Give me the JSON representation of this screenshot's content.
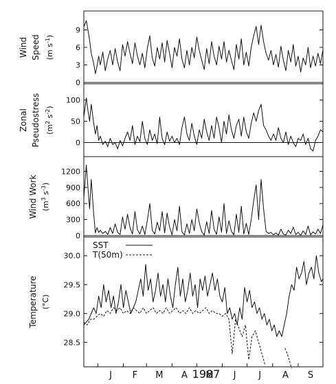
{
  "figure": {
    "year_label": "1987",
    "months": [
      "J",
      "F",
      "M",
      "A",
      "M",
      "J",
      "J",
      "A",
      "S"
    ],
    "colors": {
      "ink": "#111111",
      "background": "#ffffff"
    }
  },
  "chart_data": [
    {
      "type": "line",
      "ylabel_line1": "Wind",
      "ylabel_line2": "Speed",
      "unit_prefix": "(m s",
      "unit_exp": "-1",
      "unit_suffix": ")",
      "ylim": [
        0,
        12
      ],
      "ticks": [
        0,
        3,
        6,
        9
      ],
      "xlim": [
        0,
        290
      ],
      "zero_line": true,
      "series": [
        {
          "style": "solid",
          "x": [
            0,
            3,
            5,
            7,
            9,
            12,
            14,
            16,
            18,
            20,
            23,
            26,
            29,
            32,
            35,
            38,
            41,
            44,
            47,
            50,
            53,
            56,
            59,
            62,
            65,
            68,
            71,
            74,
            77,
            80,
            83,
            86,
            89,
            92,
            95,
            98,
            101,
            104,
            107,
            110,
            113,
            116,
            119,
            122,
            125,
            128,
            131,
            134,
            137,
            140,
            143,
            146,
            149,
            152,
            155,
            158,
            161,
            164,
            167,
            170,
            173,
            176,
            179,
            182,
            185,
            188,
            191,
            194,
            197,
            200,
            203,
            206,
            209,
            212,
            215,
            218,
            221,
            224,
            227,
            230,
            233,
            236,
            239,
            242,
            245,
            248,
            251,
            254,
            257,
            260,
            263,
            266,
            269,
            272,
            275,
            278,
            281,
            284,
            287,
            290
          ],
          "y": [
            9.5,
            10.6,
            9.0,
            7.2,
            5.0,
            3.2,
            1.5,
            2.8,
            4.5,
            3.0,
            5.2,
            2.0,
            4.0,
            5.5,
            3.0,
            5.8,
            3.5,
            2.0,
            6.5,
            4.5,
            7.0,
            5.0,
            3.2,
            6.8,
            4.5,
            3.0,
            5.0,
            2.5,
            5.8,
            8.0,
            4.2,
            2.8,
            6.0,
            4.0,
            6.8,
            3.5,
            7.2,
            5.0,
            2.5,
            6.0,
            4.5,
            7.5,
            4.0,
            2.5,
            5.5,
            3.0,
            6.0,
            4.2,
            7.8,
            5.5,
            3.8,
            2.2,
            5.8,
            3.2,
            7.0,
            4.5,
            3.0,
            6.2,
            4.0,
            7.0,
            3.5,
            5.5,
            3.8,
            2.2,
            6.5,
            4.0,
            7.5,
            3.0,
            5.2,
            2.8,
            6.0,
            8.0,
            9.6,
            6.5,
            9.8,
            7.0,
            5.0,
            3.8,
            5.5,
            3.0,
            4.8,
            2.6,
            6.2,
            3.8,
            2.0,
            5.5,
            3.5,
            6.5,
            2.8,
            4.5,
            1.8,
            4.2,
            3.0,
            6.0,
            2.5,
            4.5,
            2.8,
            5.0,
            3.2,
            5.6
          ]
        }
      ]
    },
    {
      "type": "line",
      "ylabel_line1": "Zonal",
      "ylabel_line2": "Pseudostress",
      "unit_prefix": "(m",
      "unit_exp": "2",
      "unit_mid": " s",
      "unit_exp2": "-2",
      "unit_suffix": ")",
      "ylim": [
        -30,
        135
      ],
      "ticks": [
        0,
        50,
        100
      ],
      "xlim": [
        0,
        290
      ],
      "zero_line": true,
      "series": [
        {
          "style": "solid",
          "x": [
            0,
            3,
            5,
            7,
            9,
            12,
            14,
            16,
            18,
            20,
            23,
            26,
            29,
            32,
            35,
            38,
            41,
            44,
            47,
            50,
            53,
            56,
            59,
            62,
            65,
            68,
            71,
            74,
            77,
            80,
            83,
            86,
            89,
            92,
            95,
            98,
            101,
            104,
            107,
            110,
            113,
            116,
            119,
            122,
            125,
            128,
            131,
            134,
            137,
            140,
            143,
            146,
            149,
            152,
            155,
            158,
            161,
            164,
            167,
            170,
            173,
            176,
            179,
            182,
            185,
            188,
            191,
            194,
            197,
            200,
            203,
            206,
            209,
            212,
            215,
            218,
            221,
            224,
            227,
            230,
            233,
            236,
            239,
            242,
            245,
            248,
            251,
            254,
            257,
            260,
            263,
            266,
            269,
            272,
            275,
            278,
            281,
            284,
            287,
            290
          ],
          "y": [
            60,
            105,
            75,
            50,
            90,
            45,
            20,
            40,
            5,
            15,
            -5,
            3,
            -10,
            10,
            -5,
            0,
            -15,
            5,
            -8,
            10,
            25,
            5,
            40,
            -5,
            15,
            2,
            50,
            10,
            -5,
            30,
            5,
            20,
            -3,
            60,
            10,
            -5,
            25,
            3,
            15,
            0,
            10,
            -5,
            35,
            60,
            20,
            5,
            45,
            15,
            -5,
            30,
            10,
            55,
            25,
            5,
            40,
            10,
            60,
            35,
            0,
            50,
            20,
            65,
            30,
            10,
            40,
            55,
            15,
            60,
            25,
            10,
            45,
            70,
            50,
            75,
            90,
            40,
            30,
            15,
            5,
            20,
            5,
            35,
            10,
            0,
            25,
            -5,
            15,
            0,
            -10,
            10,
            5,
            20,
            -5,
            10,
            -15,
            -20,
            5,
            15,
            30,
            25
          ]
        }
      ]
    },
    {
      "type": "line",
      "ylabel_line1": "Wind Work",
      "unit_prefix": "(m",
      "unit_exp": "3",
      "unit_mid": " s",
      "unit_exp2": "-3",
      "unit_suffix": ")",
      "ylim": [
        0,
        1450
      ],
      "ticks": [
        0,
        300,
        600,
        900,
        1200
      ],
      "xlim": [
        0,
        290
      ],
      "zero_line": true,
      "series": [
        {
          "style": "solid",
          "x": [
            0,
            3,
            5,
            7,
            9,
            12,
            14,
            16,
            18,
            20,
            23,
            26,
            29,
            32,
            35,
            38,
            41,
            44,
            47,
            50,
            53,
            56,
            59,
            62,
            65,
            68,
            71,
            74,
            77,
            80,
            83,
            86,
            89,
            92,
            95,
            98,
            101,
            104,
            107,
            110,
            113,
            116,
            119,
            122,
            125,
            128,
            131,
            134,
            137,
            140,
            143,
            146,
            149,
            152,
            155,
            158,
            161,
            164,
            167,
            170,
            173,
            176,
            179,
            182,
            185,
            188,
            191,
            194,
            197,
            200,
            203,
            206,
            209,
            212,
            215,
            218,
            221,
            224,
            227,
            230,
            233,
            236,
            239,
            242,
            245,
            248,
            251,
            254,
            257,
            260,
            263,
            266,
            269,
            272,
            275,
            278,
            281,
            284,
            287,
            290
          ],
          "y": [
            700,
            1320,
            900,
            500,
            1050,
            400,
            50,
            150,
            60,
            100,
            40,
            80,
            20,
            150,
            40,
            220,
            60,
            20,
            350,
            120,
            400,
            150,
            30,
            450,
            110,
            30,
            180,
            20,
            280,
            600,
            100,
            30,
            250,
            90,
            450,
            50,
            420,
            160,
            15,
            300,
            90,
            550,
            70,
            15,
            220,
            40,
            300,
            90,
            500,
            240,
            70,
            10,
            260,
            40,
            470,
            120,
            25,
            350,
            60,
            600,
            40,
            280,
            80,
            15,
            400,
            60,
            550,
            30,
            230,
            20,
            300,
            650,
            950,
            300,
            1050,
            500,
            80,
            40,
            60,
            15,
            50,
            10,
            120,
            30,
            10,
            100,
            40,
            160,
            20,
            60,
            5,
            90,
            20,
            180,
            15,
            70,
            30,
            120,
            40,
            200
          ]
        }
      ]
    },
    {
      "type": "line",
      "ylabel_line1": "Temperature",
      "unit_prefix": "(°C)",
      "ylim": [
        28.1,
        30.3
      ],
      "ticks": [
        28.5,
        29.0,
        29.5,
        30.0
      ],
      "tick_labels": [
        "28.5",
        "29.0",
        "29.5",
        "30.0"
      ],
      "xlim": [
        0,
        290
      ],
      "zero_line": false,
      "legend": [
        {
          "label": "SST",
          "style": "solid"
        },
        {
          "label": "T(50m)",
          "style": "dashed"
        }
      ],
      "series": [
        {
          "name": "SST",
          "style": "solid",
          "x": [
            0,
            3,
            6,
            9,
            12,
            15,
            18,
            21,
            24,
            27,
            30,
            33,
            36,
            39,
            42,
            45,
            48,
            51,
            54,
            57,
            60,
            63,
            66,
            69,
            72,
            75,
            78,
            81,
            84,
            87,
            90,
            93,
            96,
            99,
            102,
            105,
            108,
            111,
            114,
            117,
            120,
            123,
            126,
            129,
            132,
            135,
            138,
            141,
            144,
            147,
            150,
            153,
            156,
            159,
            162,
            165,
            168,
            171,
            174,
            177,
            180,
            183,
            186,
            189,
            192,
            195,
            198,
            201,
            204,
            207,
            210,
            213,
            216,
            219,
            222,
            225,
            228,
            231,
            234,
            237,
            240,
            243,
            246,
            249,
            252,
            255,
            258,
            261,
            264,
            267,
            270,
            273,
            276,
            279,
            282,
            285,
            288,
            290
          ],
          "y": [
            28.8,
            28.85,
            28.9,
            29.0,
            29.1,
            29.0,
            29.3,
            29.1,
            29.5,
            29.2,
            29.4,
            29.1,
            29.3,
            29.0,
            29.2,
            29.5,
            29.1,
            29.4,
            29.2,
            29.0,
            29.1,
            29.2,
            29.4,
            29.6,
            29.3,
            29.85,
            29.4,
            29.6,
            29.2,
            29.4,
            29.7,
            29.3,
            29.5,
            29.2,
            29.6,
            29.3,
            29.1,
            29.5,
            29.8,
            29.3,
            29.6,
            29.2,
            29.4,
            29.7,
            29.3,
            29.5,
            29.1,
            29.6,
            29.4,
            29.65,
            29.3,
            29.5,
            29.7,
            29.4,
            29.6,
            29.3,
            29.2,
            29.45,
            29.0,
            29.1,
            28.9,
            29.0,
            28.8,
            29.1,
            28.9,
            29.45,
            29.2,
            29.4,
            29.1,
            29.2,
            29.0,
            29.1,
            28.9,
            29.0,
            28.8,
            28.9,
            28.7,
            28.8,
            28.6,
            28.7,
            28.6,
            28.8,
            29.0,
            29.3,
            29.5,
            29.4,
            29.8,
            29.6,
            29.7,
            29.9,
            29.5,
            29.7,
            29.8,
            29.6,
            30.0,
            29.7,
            29.55,
            29.6
          ]
        },
        {
          "name": "T(50m)",
          "style": "dashed",
          "x": [
            0,
            4,
            8,
            12,
            16,
            20,
            24,
            28,
            32,
            36,
            40,
            44,
            48,
            52,
            56,
            60,
            64,
            68,
            72,
            76,
            80,
            84,
            88,
            92,
            96,
            100,
            104,
            108,
            112,
            116,
            120,
            124,
            128,
            132,
            136,
            140,
            144,
            148,
            152,
            156,
            160,
            164,
            168,
            172,
            176,
            180,
            184,
            188,
            192,
            196,
            200,
            204,
            208,
            212,
            216,
            220,
            224,
            228,
            232,
            236,
            240,
            244,
            248,
            252
          ],
          "y": [
            28.85,
            28.8,
            28.9,
            28.9,
            28.95,
            29.0,
            28.95,
            29.05,
            29.0,
            29.1,
            29.05,
            29.1,
            29.0,
            29.05,
            29.0,
            29.1,
            29.05,
            29.0,
            29.1,
            29.0,
            29.05,
            29.1,
            29.0,
            29.05,
            29.0,
            29.1,
            29.0,
            29.05,
            29.1,
            29.0,
            29.05,
            29.0,
            29.1,
            29.0,
            29.05,
            29.0,
            29.05,
            29.1,
            29.0,
            29.05,
            29.0,
            29.0,
            28.95,
            29.0,
            28.9,
            28.3,
            28.9,
            28.75,
            28.6,
            28.8,
            28.2,
            28.6,
            28.7,
            28.5,
            28.3,
            28.1,
            null,
            null,
            null,
            null,
            null,
            28.4,
            28.25,
            28.05
          ]
        }
      ]
    }
  ]
}
